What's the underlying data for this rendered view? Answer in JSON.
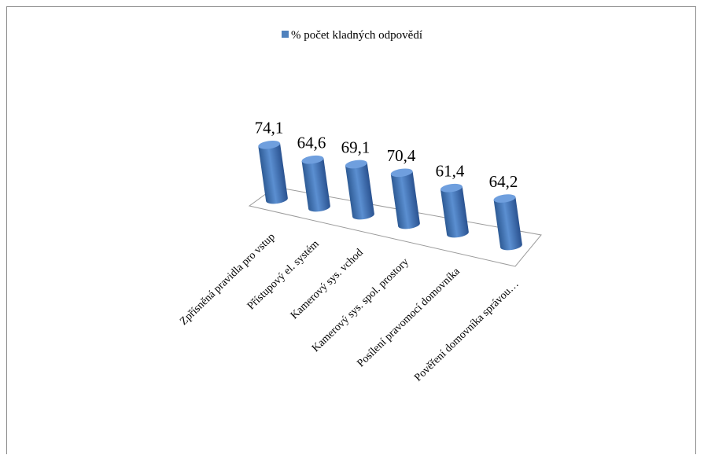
{
  "chart_data": {
    "type": "bar",
    "style": "3d-cylinder",
    "categories": [
      "Zpřísněná pravidla pro vstup",
      "Přístupový el. systém",
      "Kamerový sys. vchod",
      "Kamerový sys. spol. prostory",
      "Posílení pravomocí domovníka",
      "Pověření domovníka správou…"
    ],
    "series": [
      {
        "name": "% počet kladných odpovědí",
        "values": [
          74.1,
          64.6,
          69.1,
          70.4,
          61.4,
          64.2
        ],
        "labels": [
          "74,1",
          "64,6",
          "69,1",
          "70,4",
          "61,4",
          "64,2"
        ],
        "color": "#4f81bd"
      }
    ],
    "legend": "top-center",
    "grid": false
  }
}
